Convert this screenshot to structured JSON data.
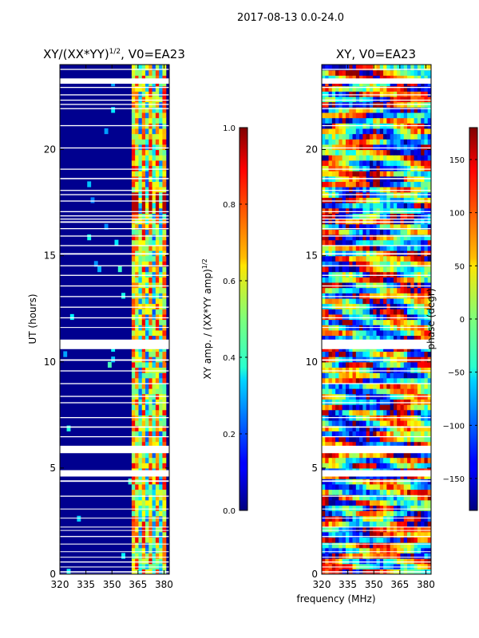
{
  "suptitle": "2017-08-13 0.0-24.0",
  "shared_xlabel": "frequency (MHz)",
  "chart_data": [
    {
      "type": "heatmap",
      "title_main": "XY/(XX*YY)",
      "title_sup": "1/2",
      "title_rest": ", V0=EA23",
      "xlabel": "",
      "ylabel": "UT (hours)",
      "xlim": [
        320,
        383
      ],
      "ylim": [
        0,
        24
      ],
      "xticks": [
        320,
        335,
        350,
        365,
        380
      ],
      "yticks": [
        0,
        5,
        10,
        15,
        20
      ],
      "colormap": "jet",
      "colorbar": {
        "label_main": "XY amp. / (XX*YY amp)",
        "label_sup": "1/2",
        "range": [
          0.0,
          1.0
        ],
        "ticks": [
          "0.0",
          "0.2",
          "0.4",
          "0.6",
          "0.8",
          "1.0"
        ],
        "tick_values": [
          0,
          0.2,
          0.4,
          0.6,
          0.8,
          1.0
        ]
      },
      "gaps_hours": [
        [
          0.0,
          0.03
        ],
        [
          0.08,
          0.14
        ],
        [
          0.32,
          0.36
        ],
        [
          0.55,
          0.6
        ],
        [
          0.78,
          0.82
        ],
        [
          1.05,
          1.08
        ],
        [
          1.4,
          1.44
        ],
        [
          1.75,
          1.8
        ],
        [
          2.05,
          2.08
        ],
        [
          2.2,
          2.24
        ],
        [
          2.62,
          2.66
        ],
        [
          3.05,
          3.09
        ],
        [
          3.65,
          3.7
        ],
        [
          4.35,
          4.42
        ],
        [
          4.6,
          4.9
        ],
        [
          5.7,
          6.05
        ],
        [
          6.45,
          6.5
        ],
        [
          6.9,
          6.96
        ],
        [
          7.35,
          7.4
        ],
        [
          8.05,
          8.1
        ],
        [
          8.35,
          8.4
        ],
        [
          8.95,
          9.0
        ],
        [
          9.55,
          9.6
        ],
        [
          10.05,
          10.12
        ],
        [
          10.6,
          11.05
        ],
        [
          11.6,
          11.64
        ],
        [
          12.05,
          12.1
        ],
        [
          12.55,
          12.6
        ],
        [
          13.05,
          13.1
        ],
        [
          13.55,
          13.6
        ],
        [
          14.05,
          14.1
        ],
        [
          14.5,
          14.55
        ],
        [
          15.05,
          15.12
        ],
        [
          15.45,
          15.5
        ],
        [
          15.9,
          15.95
        ],
        [
          16.25,
          16.3
        ],
        [
          16.55,
          16.62
        ],
        [
          16.7,
          16.75
        ],
        [
          16.85,
          16.9
        ],
        [
          17.05,
          17.1
        ],
        [
          17.55,
          17.6
        ],
        [
          17.85,
          17.9
        ],
        [
          18.05,
          18.1
        ],
        [
          18.6,
          18.66
        ],
        [
          19.05,
          19.1
        ],
        [
          20.05,
          20.1
        ],
        [
          21.1,
          21.15
        ],
        [
          21.9,
          21.95
        ],
        [
          22.1,
          22.15
        ],
        [
          22.3,
          22.35
        ],
        [
          22.55,
          22.6
        ],
        [
          22.9,
          22.95
        ],
        [
          23.1,
          23.35
        ],
        [
          23.75,
          23.8
        ]
      ]
    },
    {
      "type": "heatmap",
      "title": "XY, V0=EA23",
      "xlabel": "",
      "ylabel": "",
      "xlim": [
        320,
        383
      ],
      "ylim": [
        0,
        24
      ],
      "xticks": [
        320,
        335,
        350,
        365,
        380
      ],
      "yticks": [
        0,
        5,
        10,
        15,
        20
      ],
      "colormap": "jet",
      "colorbar": {
        "label": "phase (degr)",
        "range": [
          -180,
          180
        ],
        "ticks": [
          "−150",
          "−100",
          "−50",
          "0",
          "50",
          "100",
          "150"
        ],
        "tick_values": [
          -150,
          -100,
          -50,
          0,
          50,
          100,
          150
        ]
      },
      "gaps_hours": [
        [
          0.0,
          0.03
        ],
        [
          0.08,
          0.14
        ],
        [
          0.32,
          0.36
        ],
        [
          0.55,
          0.6
        ],
        [
          0.78,
          0.82
        ],
        [
          1.05,
          1.08
        ],
        [
          1.4,
          1.44
        ],
        [
          1.75,
          1.8
        ],
        [
          2.05,
          2.08
        ],
        [
          2.2,
          2.24
        ],
        [
          2.62,
          2.66
        ],
        [
          3.05,
          3.09
        ],
        [
          3.65,
          3.7
        ],
        [
          4.35,
          4.42
        ],
        [
          4.6,
          4.9
        ],
        [
          5.7,
          6.05
        ],
        [
          6.45,
          6.5
        ],
        [
          6.9,
          6.96
        ],
        [
          7.35,
          7.4
        ],
        [
          8.05,
          8.1
        ],
        [
          8.35,
          8.4
        ],
        [
          8.95,
          9.0
        ],
        [
          9.55,
          9.6
        ],
        [
          10.05,
          10.12
        ],
        [
          10.6,
          11.05
        ],
        [
          11.6,
          11.64
        ],
        [
          12.05,
          12.1
        ],
        [
          12.55,
          12.6
        ],
        [
          13.05,
          13.1
        ],
        [
          13.55,
          13.6
        ],
        [
          14.05,
          14.1
        ],
        [
          14.5,
          14.55
        ],
        [
          15.05,
          15.12
        ],
        [
          15.45,
          15.5
        ],
        [
          15.9,
          15.95
        ],
        [
          16.25,
          16.3
        ],
        [
          16.55,
          16.62
        ],
        [
          16.7,
          16.75
        ],
        [
          16.85,
          16.9
        ],
        [
          17.05,
          17.1
        ],
        [
          17.55,
          17.6
        ],
        [
          17.85,
          17.9
        ],
        [
          18.05,
          18.1
        ],
        [
          18.6,
          18.66
        ],
        [
          19.05,
          19.1
        ],
        [
          20.05,
          20.1
        ],
        [
          21.1,
          21.15
        ],
        [
          21.9,
          21.95
        ],
        [
          22.1,
          22.15
        ],
        [
          22.3,
          22.35
        ],
        [
          22.55,
          22.6
        ],
        [
          22.9,
          22.95
        ],
        [
          23.1,
          23.35
        ],
        [
          23.75,
          23.8
        ]
      ]
    }
  ]
}
